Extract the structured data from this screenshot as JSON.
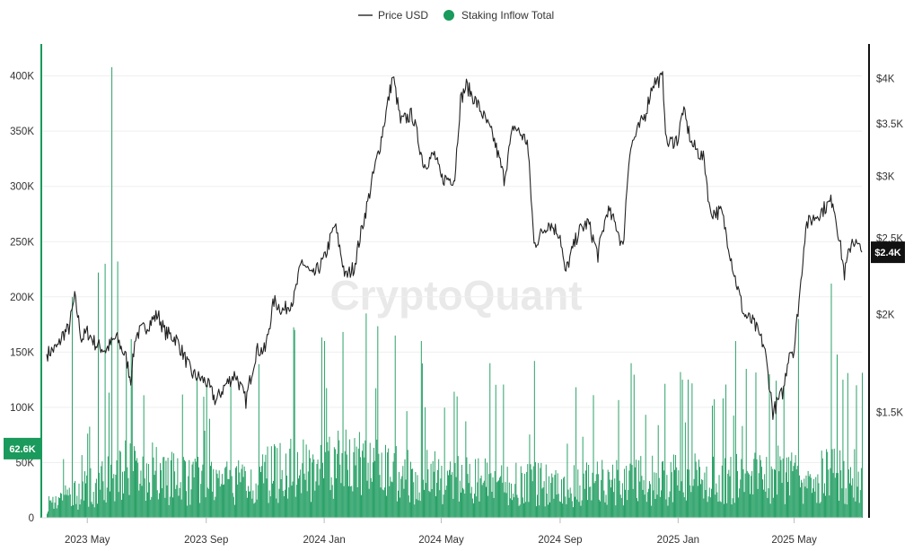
{
  "watermark": "CryptoQuant",
  "legend": [
    {
      "label": "Price USD",
      "color": "#333333",
      "marker": "line"
    },
    {
      "label": "Staking Inflow Total",
      "color": "#1a9a5c",
      "marker": "dot"
    }
  ],
  "chart_data": {
    "type": "bar+line",
    "x_range": [
      "2023-03-20",
      "2025-07-10"
    ],
    "x_ticks": [
      {
        "date": "2023-05-01",
        "label": "2023 May"
      },
      {
        "date": "2023-09-01",
        "label": "2023 Sep"
      },
      {
        "date": "2024-01-01",
        "label": "2024 Jan"
      },
      {
        "date": "2024-05-01",
        "label": "2024 May"
      },
      {
        "date": "2024-09-01",
        "label": "2024 Sep"
      },
      {
        "date": "2025-01-01",
        "label": "2025 Jan"
      },
      {
        "date": "2025-05-01",
        "label": "2025 May"
      }
    ],
    "left_axis": {
      "series": "Staking Inflow Total",
      "range": [
        0,
        420000
      ],
      "ticks": [
        {
          "value": 0,
          "label": "0"
        },
        {
          "value": 50000,
          "label": "50K"
        },
        {
          "value": 100000,
          "label": "100K"
        },
        {
          "value": 150000,
          "label": "150K"
        },
        {
          "value": 200000,
          "label": "200K"
        },
        {
          "value": 250000,
          "label": "250K"
        },
        {
          "value": 300000,
          "label": "300K"
        },
        {
          "value": 350000,
          "label": "350K"
        },
        {
          "value": 400000,
          "label": "400K"
        }
      ],
      "current_value": 62600,
      "current_label": "62.6K",
      "color": "#1a9a5c"
    },
    "right_axis": {
      "series": "Price USD",
      "scale": "log",
      "range": [
        1100,
        4300
      ],
      "ticks": [
        {
          "value": 1500,
          "label": "$1.5K"
        },
        {
          "value": 2000,
          "label": "$2K"
        },
        {
          "value": 2500,
          "label": "$2.5K"
        },
        {
          "value": 3000,
          "label": "$3K"
        },
        {
          "value": 3500,
          "label": "$3.5K"
        },
        {
          "value": 4000,
          "label": "$4K"
        }
      ],
      "current_value": 2400,
      "current_label": "$2.4K",
      "color": "#222222"
    },
    "grid": "horizontal",
    "legend_position": "top-center",
    "price_series": {
      "name": "Price USD",
      "color": "#222222",
      "points": [
        [
          "2023-03-20",
          1780
        ],
        [
          "2023-04-01",
          1820
        ],
        [
          "2023-04-05",
          1880
        ],
        [
          "2023-04-12",
          1920
        ],
        [
          "2023-04-18",
          2100
        ],
        [
          "2023-04-25",
          1860
        ],
        [
          "2023-05-01",
          1900
        ],
        [
          "2023-05-10",
          1830
        ],
        [
          "2023-05-20",
          1800
        ],
        [
          "2023-05-31",
          1870
        ],
        [
          "2023-06-10",
          1760
        ],
        [
          "2023-06-15",
          1650
        ],
        [
          "2023-06-20",
          1880
        ],
        [
          "2023-07-01",
          1930
        ],
        [
          "2023-07-13",
          2000
        ],
        [
          "2023-07-20",
          1900
        ],
        [
          "2023-08-01",
          1860
        ],
        [
          "2023-08-17",
          1680
        ],
        [
          "2023-09-01",
          1640
        ],
        [
          "2023-09-11",
          1550
        ],
        [
          "2023-09-20",
          1620
        ],
        [
          "2023-10-01",
          1680
        ],
        [
          "2023-10-12",
          1550
        ],
        [
          "2023-10-23",
          1800
        ],
        [
          "2023-11-01",
          1800
        ],
        [
          "2023-11-10",
          2080
        ],
        [
          "2023-11-20",
          2020
        ],
        [
          "2023-12-01",
          2100
        ],
        [
          "2023-12-09",
          2340
        ],
        [
          "2023-12-20",
          2230
        ],
        [
          "2024-01-01",
          2350
        ],
        [
          "2024-01-12",
          2600
        ],
        [
          "2024-01-23",
          2230
        ],
        [
          "2024-02-01",
          2300
        ],
        [
          "2024-02-15",
          2780
        ],
        [
          "2024-02-28",
          3300
        ],
        [
          "2024-03-05",
          3620
        ],
        [
          "2024-03-12",
          4030
        ],
        [
          "2024-03-20",
          3520
        ],
        [
          "2024-04-01",
          3600
        ],
        [
          "2024-04-13",
          3100
        ],
        [
          "2024-04-24",
          3200
        ],
        [
          "2024-05-01",
          2980
        ],
        [
          "2024-05-15",
          2980
        ],
        [
          "2024-05-21",
          3750
        ],
        [
          "2024-05-27",
          3920
        ],
        [
          "2024-06-10",
          3660
        ],
        [
          "2024-06-24",
          3360
        ],
        [
          "2024-07-05",
          2980
        ],
        [
          "2024-07-15",
          3480
        ],
        [
          "2024-07-29",
          3320
        ],
        [
          "2024-08-05",
          2450
        ],
        [
          "2024-08-20",
          2620
        ],
        [
          "2024-09-01",
          2530
        ],
        [
          "2024-09-06",
          2250
        ],
        [
          "2024-09-20",
          2550
        ],
        [
          "2024-09-30",
          2620
        ],
        [
          "2024-10-10",
          2380
        ],
        [
          "2024-10-20",
          2720
        ],
        [
          "2024-10-30",
          2580
        ],
        [
          "2024-11-05",
          2420
        ],
        [
          "2024-11-12",
          3250
        ],
        [
          "2024-11-28",
          3600
        ],
        [
          "2024-12-06",
          3950
        ],
        [
          "2024-12-16",
          4000
        ],
        [
          "2024-12-20",
          3300
        ],
        [
          "2025-01-01",
          3350
        ],
        [
          "2025-01-06",
          3650
        ],
        [
          "2025-01-15",
          3300
        ],
        [
          "2025-01-28",
          3150
        ],
        [
          "2025-02-03",
          2700
        ],
        [
          "2025-02-15",
          2700
        ],
        [
          "2025-02-28",
          2250
        ],
        [
          "2025-03-10",
          2000
        ],
        [
          "2025-03-20",
          1950
        ],
        [
          "2025-03-31",
          1820
        ],
        [
          "2025-04-09",
          1500
        ],
        [
          "2025-04-20",
          1600
        ],
        [
          "2025-04-26",
          1800
        ],
        [
          "2025-05-01",
          1800
        ],
        [
          "2025-05-08",
          2200
        ],
        [
          "2025-05-13",
          2600
        ],
        [
          "2025-05-28",
          2700
        ],
        [
          "2025-06-10",
          2800
        ],
        [
          "2025-06-22",
          2250
        ],
        [
          "2025-06-30",
          2500
        ],
        [
          "2025-07-05",
          2450
        ],
        [
          "2025-07-10",
          2400
        ]
      ]
    },
    "inflow_series": {
      "name": "Staking Inflow Total",
      "color": "#1a9a5c",
      "notable_spikes": [
        [
          "2023-04-15",
          200000
        ],
        [
          "2023-05-12",
          222000
        ],
        [
          "2023-05-19",
          230000
        ],
        [
          "2023-05-26",
          408000
        ],
        [
          "2023-06-01",
          232000
        ],
        [
          "2023-06-10",
          145000
        ],
        [
          "2023-09-01",
          120000
        ],
        [
          "2023-12-01",
          170000
        ],
        [
          "2024-01-01",
          160000
        ],
        [
          "2024-02-13",
          185000
        ],
        [
          "2024-03-14",
          165000
        ],
        [
          "2024-04-10",
          160000
        ],
        [
          "2024-06-20",
          140000
        ],
        [
          "2024-08-05",
          142000
        ],
        [
          "2024-11-13",
          140000
        ],
        [
          "2025-01-05",
          125000
        ],
        [
          "2025-03-01",
          160000
        ],
        [
          "2025-04-05",
          130000
        ],
        [
          "2025-05-05",
          180000
        ],
        [
          "2025-06-08",
          212000
        ],
        [
          "2025-06-20",
          125000
        ]
      ],
      "baseline_levels": [
        [
          "2023-03-20",
          15000
        ],
        [
          "2023-06-01",
          45000
        ],
        [
          "2023-06-15",
          60000
        ],
        [
          "2023-08-01",
          42000
        ],
        [
          "2023-10-01",
          38000
        ],
        [
          "2023-12-01",
          55000
        ],
        [
          "2024-02-01",
          60000
        ],
        [
          "2024-04-01",
          48000
        ],
        [
          "2024-06-01",
          40000
        ],
        [
          "2024-09-01",
          36000
        ],
        [
          "2024-12-01",
          42000
        ],
        [
          "2025-03-01",
          45000
        ],
        [
          "2025-05-01",
          50000
        ],
        [
          "2025-07-10",
          45000
        ]
      ]
    }
  }
}
